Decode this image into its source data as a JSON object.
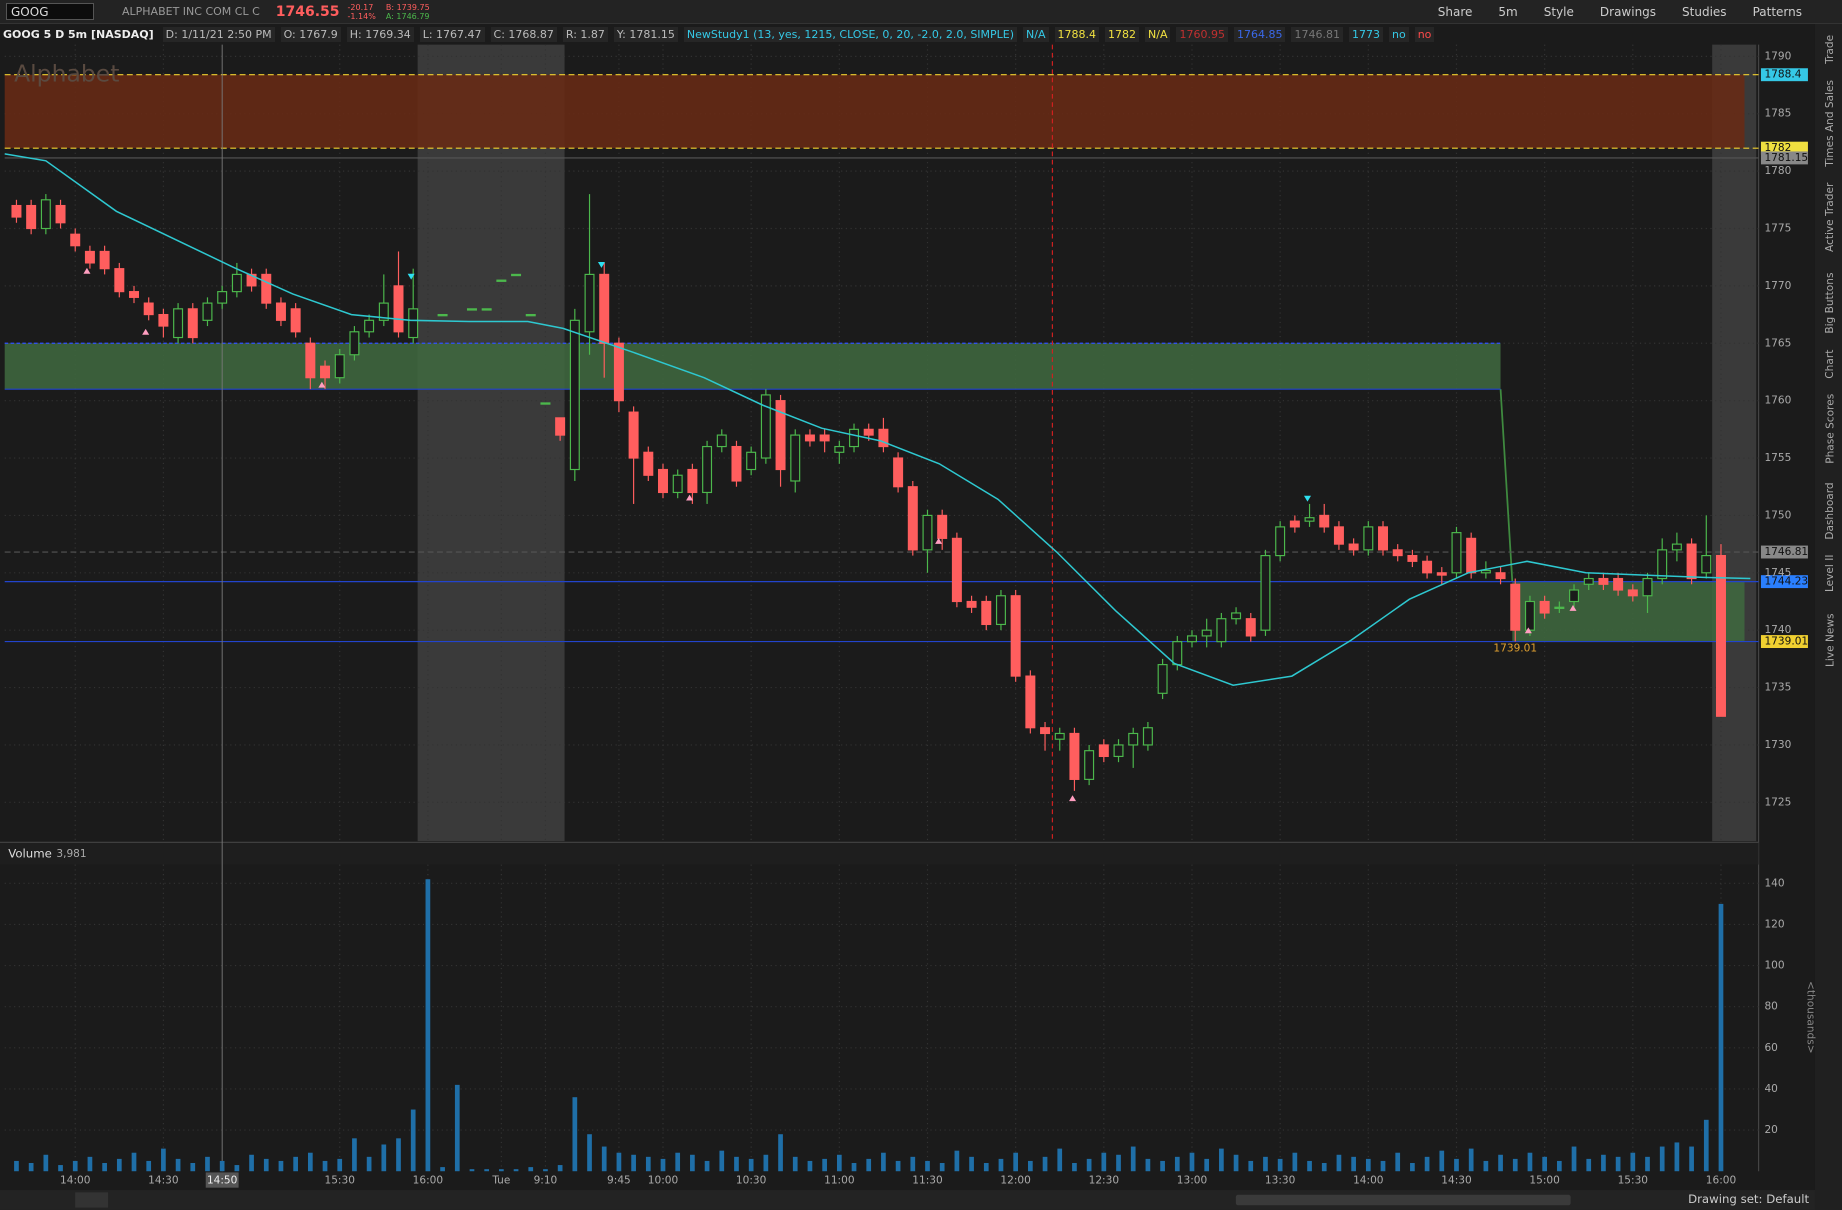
{
  "toolbar": {
    "symbol": "GOOG",
    "description": "ALPHABET INC COM CL C",
    "last": "1746.55",
    "change": "-20.17",
    "change_pct": "-1.14%",
    "bid": "B: 1739.75",
    "ask": "A: 1746.79",
    "buttons": [
      "Share",
      "5m",
      "Style",
      "Drawings",
      "Studies",
      "Patterns"
    ]
  },
  "info_bar": {
    "title": "GOOG 5 D 5m [NASDAQ]",
    "items": [
      "D: 1/11/21 2:50 PM",
      "O: 1767.9",
      "H: 1769.34",
      "L: 1767.47",
      "C: 1768.87",
      "R: 1.87",
      "Y: 1781.15"
    ],
    "study": "NewStudy1 (13, yes, 1215, CLOSE, 0, 20, -2.0, 2.0, SIMPLE)",
    "study_values": [
      {
        "text": "N/A",
        "color": "#35c8e6"
      },
      {
        "text": "1788.4",
        "color": "#f0e040"
      },
      {
        "text": "1782",
        "color": "#f0e040"
      },
      {
        "text": "N/A",
        "color": "#f0e040"
      },
      {
        "text": "1760.95",
        "color": "#c03030"
      },
      {
        "text": "1764.85",
        "color": "#3a68e8"
      },
      {
        "text": "1746.81",
        "color": "#777777"
      },
      {
        "text": "1773",
        "color": "#35c8e6"
      },
      {
        "text": "no",
        "color": "#35c8e6"
      },
      {
        "text": "no",
        "color": "#ff4a4a"
      }
    ]
  },
  "sidebar_tabs": [
    "Trade",
    "Times And Sales",
    "Active Trader",
    "Big Buttons",
    "Chart",
    "Phase Scores",
    "Dashboard",
    "Level II",
    "Live News"
  ],
  "status": "Drawing set: Default",
  "chart_data": {
    "type": "candlestick",
    "watermark": "Alphabet",
    "volume_label": "Volume",
    "volume_total": "3,981",
    "volume_axis_label": "<thousands>",
    "up_color": "#4cb84c",
    "down_color": "#ff5e5e",
    "volume_color": "#1f6fa8",
    "ma_color": "#2ec8d0",
    "grid": true,
    "xlim": [
      -4.8,
      114.4
    ],
    "ylim": [
      1721.62,
      1791.02
    ],
    "vlim": [
      0,
      149.1
    ],
    "yticks": [
      1725,
      1730,
      1735,
      1740,
      1745,
      1750,
      1755,
      1760,
      1765,
      1770,
      1775,
      1780,
      1785,
      1790
    ],
    "vticks": [
      20,
      40,
      60,
      80,
      100,
      120,
      140
    ],
    "xticks": [
      {
        "value": 0,
        "label": "14:00"
      },
      {
        "value": 6,
        "label": "14:30"
      },
      {
        "value": 18,
        "label": "15:30"
      },
      {
        "value": 24,
        "label": "16:00"
      },
      {
        "value": 29,
        "label": "Tue"
      },
      {
        "value": 32,
        "label": "9:10"
      },
      {
        "value": 37,
        "label": "9:45"
      },
      {
        "value": 40,
        "label": "10:00"
      },
      {
        "value": 46,
        "label": "10:30"
      },
      {
        "value": 52,
        "label": "11:00"
      },
      {
        "value": 58,
        "label": "11:30"
      },
      {
        "value": 64,
        "label": "12:00"
      },
      {
        "value": 70,
        "label": "12:30"
      },
      {
        "value": 76,
        "label": "13:00"
      },
      {
        "value": 82,
        "label": "13:30"
      },
      {
        "value": 88,
        "label": "14:00"
      },
      {
        "value": 94,
        "label": "14:30"
      },
      {
        "value": 100,
        "label": "15:00"
      },
      {
        "value": 106,
        "label": "15:30"
      },
      {
        "value": 112,
        "label": "16:00"
      }
    ],
    "cursor": {
      "value": 10,
      "label": "14:50"
    },
    "marker_x": 66.5,
    "extended_hours": [
      [
        23.3,
        33.3
      ],
      [
        111.4,
        114.4
      ]
    ],
    "zones": [
      {
        "top": 1788.4,
        "bottom": 1782,
        "x": [
          -4.8,
          113.6
        ],
        "color": "#6a2a14"
      },
      {
        "top": 1765,
        "bottom": 1761,
        "x": [
          -4.8,
          97
        ],
        "color": "#3f6a3f"
      },
      {
        "top": 1744.23,
        "bottom": 1739.01,
        "x": [
          97.8,
          113.6
        ],
        "color": "#3f6a3f"
      }
    ],
    "levels": [
      {
        "value": 1788.4,
        "color": "#f0d030",
        "tag": "#35c8e6",
        "dash": true
      },
      {
        "value": 1782,
        "color": "#f0d030",
        "tag": "#f0e040",
        "dash": true
      },
      {
        "value": 1781.15,
        "color": "#555555",
        "tag": "#888888",
        "dash": false
      },
      {
        "value": 1746.81,
        "color": "#555555",
        "tag": "#888888",
        "dash": true
      },
      {
        "value": 1744.23,
        "color": "#2244cc",
        "tag": "#2a7fff",
        "dash": false
      },
      {
        "value": 1739.01,
        "color": "#2244cc",
        "tag": "#f0d030",
        "dash": false
      }
    ],
    "low_annotation": {
      "value": 1739.01,
      "x": 98
    },
    "x": [
      -4,
      -3,
      -2,
      -1,
      0,
      1,
      2,
      3,
      4,
      5,
      6,
      7,
      8,
      9,
      10,
      11,
      12,
      13,
      14,
      15,
      16,
      17,
      18,
      19,
      20,
      21,
      22,
      23,
      24,
      25,
      26,
      27,
      28,
      29,
      30,
      31,
      32,
      33,
      34,
      35,
      36,
      37,
      38,
      39,
      40,
      41,
      42,
      43,
      44,
      45,
      46,
      47,
      48,
      49,
      50,
      51,
      52,
      53,
      54,
      55,
      56,
      57,
      58,
      59,
      60,
      61,
      62,
      63,
      64,
      65,
      66,
      67,
      68,
      69,
      70,
      71,
      72,
      73,
      74,
      75,
      76,
      77,
      78,
      79,
      80,
      81,
      82,
      83,
      84,
      85,
      86,
      87,
      88,
      89,
      90,
      91,
      92,
      93,
      94,
      95,
      96,
      97,
      98,
      99,
      100,
      101,
      102,
      103,
      104,
      105,
      106,
      107,
      108,
      109,
      110,
      111,
      112
    ],
    "ohlc": [
      [
        1777,
        1777.5,
        1775.5,
        1776
      ],
      [
        1777,
        1777.5,
        1774.5,
        1775
      ],
      [
        1775,
        1778,
        1774.5,
        1777.5
      ],
      [
        1777,
        1777.5,
        1775,
        1775.5
      ],
      [
        1774.5,
        1775,
        1773,
        1773.5
      ],
      [
        1773,
        1773.5,
        1771.5,
        1772
      ],
      [
        1773,
        1773.5,
        1771,
        1771.5
      ],
      [
        1771.5,
        1772,
        1769,
        1769.5
      ],
      [
        1769.5,
        1770,
        1768.5,
        1769
      ],
      [
        1768.5,
        1769,
        1767,
        1767.5
      ],
      [
        1767.5,
        1768,
        1765.5,
        1766.5
      ],
      [
        1765.5,
        1768.5,
        1765,
        1768
      ],
      [
        1768,
        1768.5,
        1765,
        1765.5
      ],
      [
        1767,
        1769,
        1766.5,
        1768.5
      ],
      [
        1768.5,
        1770,
        1768,
        1769.5
      ],
      [
        1769.5,
        1772,
        1769,
        1771
      ],
      [
        1771,
        1771.5,
        1769.5,
        1770
      ],
      [
        1771,
        1771.5,
        1768,
        1768.5
      ],
      [
        1768.5,
        1769,
        1766.5,
        1767
      ],
      [
        1768,
        1768.5,
        1765.5,
        1766
      ],
      [
        1765,
        1765.5,
        1761,
        1762
      ],
      [
        1763,
        1763.5,
        1761,
        1762
      ],
      [
        1762,
        1764.5,
        1761.5,
        1764
      ],
      [
        1764,
        1766.5,
        1763.5,
        1766
      ],
      [
        1766,
        1767.5,
        1765.5,
        1767
      ],
      [
        1767,
        1771,
        1766.5,
        1768.5
      ],
      [
        1770,
        1773,
        1765.5,
        1766
      ],
      [
        1765.5,
        1771.5,
        1765,
        1768
      ],
      null,
      [
        1767.5,
        1767.5,
        1767.5,
        1767.5
      ],
      null,
      [
        1768,
        1768,
        1768,
        1768
      ],
      [
        1768,
        1768,
        1768,
        1768
      ],
      [
        1770.5,
        1770.5,
        1770.5,
        1770.5
      ],
      [
        1771,
        1771,
        1771,
        1771
      ],
      [
        1767.5,
        1767.5,
        1767.5,
        1767.5
      ],
      [
        1759.8,
        1759.8,
        1759.8,
        1759.8
      ],
      [
        1758.5,
        1758.5,
        1756.5,
        1757
      ],
      [
        1754,
        1768,
        1753,
        1767
      ],
      [
        1766,
        1778,
        1764,
        1771
      ],
      [
        1771,
        1772,
        1762,
        1765
      ],
      [
        1765,
        1765.5,
        1759,
        1760
      ],
      [
        1759,
        1759.5,
        1751,
        1755
      ],
      [
        1755.5,
        1756,
        1753,
        1753.5
      ],
      [
        1754,
        1754.5,
        1751.5,
        1752
      ],
      [
        1752,
        1754,
        1751.5,
        1753.5
      ],
      [
        1754,
        1754.5,
        1751,
        1752
      ],
      [
        1752,
        1756.5,
        1751,
        1756
      ],
      [
        1756,
        1757.5,
        1755.5,
        1757
      ],
      [
        1756,
        1756.5,
        1752.5,
        1753
      ],
      [
        1754,
        1756,
        1753.5,
        1755.5
      ],
      [
        1755,
        1761,
        1754.5,
        1760.5
      ],
      [
        1760,
        1760.5,
        1752.5,
        1754
      ],
      [
        1753,
        1757.5,
        1752,
        1757
      ],
      [
        1757,
        1757.5,
        1756,
        1756.5
      ],
      [
        1757,
        1757.5,
        1755.5,
        1756.5
      ],
      [
        1755.5,
        1756.5,
        1754.5,
        1756
      ],
      [
        1756,
        1758,
        1755.5,
        1757.5
      ],
      [
        1757.5,
        1758,
        1756.5,
        1757
      ],
      [
        1757.5,
        1758.5,
        1755.5,
        1756
      ],
      [
        1755,
        1755.5,
        1752,
        1752.5
      ],
      [
        1752.5,
        1753,
        1746.5,
        1747
      ],
      [
        1747,
        1750.5,
        1745,
        1750
      ],
      [
        1750,
        1750.5,
        1747,
        1748
      ],
      [
        1748,
        1748.5,
        1742,
        1742.5
      ],
      [
        1742.5,
        1743,
        1741.5,
        1742
      ],
      [
        1742.5,
        1743,
        1740,
        1740.5
      ],
      [
        1740.5,
        1743.5,
        1740,
        1743
      ],
      [
        1743,
        1743.5,
        1735.5,
        1736
      ],
      [
        1736,
        1736.5,
        1731,
        1731.5
      ],
      [
        1731.5,
        1732,
        1729.5,
        1731
      ],
      [
        1730.5,
        1731.5,
        1729.5,
        1731
      ],
      [
        1731,
        1731.5,
        1726,
        1727
      ],
      [
        1727,
        1730,
        1726.5,
        1729.5
      ],
      [
        1730,
        1730.5,
        1728.5,
        1729
      ],
      [
        1729,
        1730.5,
        1728.5,
        1730
      ],
      [
        1730,
        1731.5,
        1728,
        1731
      ],
      [
        1730,
        1732,
        1729.5,
        1731.5
      ],
      [
        1734.5,
        1737.5,
        1734,
        1737
      ],
      [
        1737,
        1739.5,
        1736.5,
        1739
      ],
      [
        1739,
        1740,
        1738.5,
        1739.5
      ],
      [
        1739.5,
        1741,
        1738.5,
        1740
      ],
      [
        1739,
        1741.5,
        1738.5,
        1741
      ],
      [
        1741,
        1742,
        1740.5,
        1741.5
      ],
      [
        1741,
        1741.5,
        1739,
        1739.5
      ],
      [
        1740,
        1747,
        1739.5,
        1746.5
      ],
      [
        1746.5,
        1749.5,
        1746,
        1749
      ],
      [
        1749.5,
        1750,
        1748.5,
        1749
      ],
      [
        1749.5,
        1751,
        1749,
        1749.8
      ],
      [
        1750,
        1751,
        1748.5,
        1749
      ],
      [
        1749,
        1749.5,
        1747,
        1747.5
      ],
      [
        1747.5,
        1748,
        1746.5,
        1747
      ],
      [
        1747,
        1749.5,
        1746.5,
        1749
      ],
      [
        1749,
        1749.5,
        1746.5,
        1747
      ],
      [
        1747,
        1747.5,
        1746,
        1746.5
      ],
      [
        1746.5,
        1747,
        1745.5,
        1746
      ],
      [
        1746,
        1746.5,
        1744.5,
        1745
      ],
      [
        1745,
        1745.5,
        1744,
        1744.8
      ],
      [
        1745,
        1749,
        1744.5,
        1748.5
      ],
      [
        1748,
        1748.5,
        1744.5,
        1745
      ],
      [
        1745,
        1746,
        1744.5,
        1745.2
      ],
      [
        1745,
        1745.5,
        1744,
        1744.5
      ],
      [
        1744,
        1744.5,
        1739.01,
        1740
      ],
      [
        1740,
        1743,
        1739.5,
        1742.5
      ],
      [
        1742.5,
        1743,
        1741,
        1741.5
      ],
      [
        1742,
        1742.5,
        1741.5,
        1742
      ],
      [
        1742.5,
        1744,
        1742,
        1743.5
      ],
      [
        1744,
        1745,
        1743.5,
        1744.5
      ],
      [
        1744.5,
        1745,
        1743.5,
        1744
      ],
      [
        1744.5,
        1745,
        1743,
        1743.5
      ],
      [
        1743.5,
        1744,
        1742.5,
        1743
      ],
      [
        1743,
        1745,
        1741.5,
        1744.5
      ],
      [
        1744.5,
        1748,
        1744,
        1747
      ],
      [
        1747,
        1748.5,
        1746,
        1747.5
      ],
      [
        1747.5,
        1748,
        1744,
        1744.5
      ],
      [
        1745,
        1750,
        1744.5,
        1746.5
      ],
      [
        1746.5,
        1747.5,
        1732.5,
        1732.5
      ]
    ],
    "volume": [
      5,
      4,
      8,
      3,
      5,
      7,
      4,
      6,
      9,
      5,
      11,
      6,
      4,
      7,
      5,
      3,
      8,
      6,
      5,
      7,
      9,
      5,
      6,
      16,
      7,
      13,
      16,
      30,
      142,
      2,
      42,
      1,
      1,
      1,
      1,
      2,
      1,
      3,
      36,
      18,
      12,
      9,
      8,
      7,
      6,
      9,
      8,
      5,
      10,
      7,
      6,
      8,
      18,
      7,
      5,
      6,
      8,
      4,
      6,
      9,
      5,
      7,
      5,
      4,
      10,
      7,
      4,
      6,
      9,
      5,
      7,
      11,
      4,
      6,
      9,
      8,
      12,
      6,
      5,
      7,
      9,
      6,
      11,
      8,
      5,
      7,
      6,
      9,
      5,
      4,
      8,
      7,
      6,
      5,
      9,
      4,
      7,
      10,
      6,
      11,
      5,
      8,
      6,
      9,
      7,
      5,
      12,
      6,
      8,
      7,
      9,
      7,
      12,
      14,
      12,
      25,
      130
    ],
    "ma": {
      "x": [
        -4.8,
        -2,
        2.8,
        10.8,
        14.8,
        18.8,
        22.8,
        26.8,
        30.8,
        33.2,
        38,
        42.8,
        46.8,
        50.8,
        54.8,
        58.8,
        62.8,
        66.8,
        70.8,
        74.8,
        78.8,
        82.8,
        86.8,
        90.8,
        94.8,
        98.8,
        102.8,
        106.8,
        110.8,
        114
      ],
      "values": [
        1781.5,
        1780.9,
        1776.5,
        1771.6,
        1769.3,
        1767.5,
        1767,
        1766.9,
        1766.9,
        1766.3,
        1764.2,
        1762,
        1759.6,
        1757.6,
        1756.5,
        1754.5,
        1751.4,
        1746.8,
        1741.7,
        1737.1,
        1735.2,
        1736,
        1739.1,
        1742.7,
        1745,
        1746,
        1745,
        1744.8,
        1744.6,
        1744.5
      ]
    }
  }
}
